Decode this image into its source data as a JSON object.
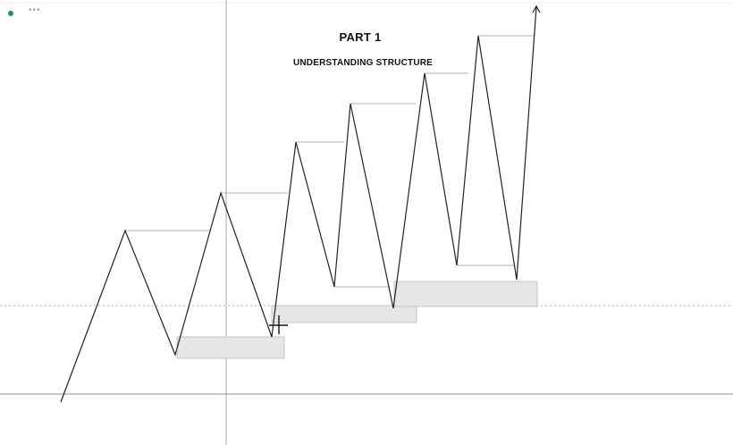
{
  "title": "PART 1",
  "subtitle": "UNDERSTANDING STRUCTURE",
  "colors": {
    "line": "#222222",
    "level_line": "#b5b5b5",
    "zone_fill": "#e6e6e6",
    "zone_stroke": "#c4c4c4",
    "dot": "#1a8f7a"
  },
  "icons": {
    "status": "status-dot-icon",
    "more": "more-options-icon",
    "cursor": "crosshair-cursor-icon"
  },
  "more_glyph": "•••"
}
